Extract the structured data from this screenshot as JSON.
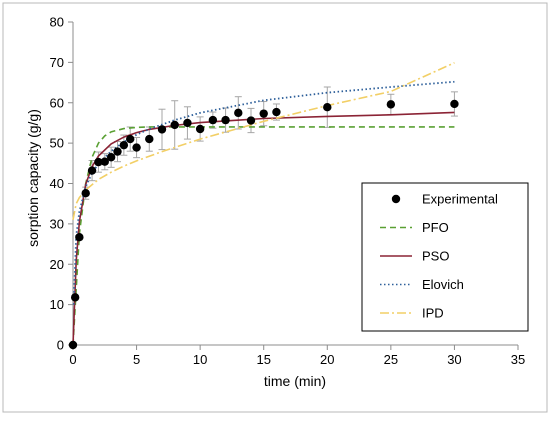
{
  "chart_data": {
    "type": "scatter",
    "xlabel": "time (min)",
    "ylabel": "sorption capacity (g/g)",
    "xlim": [
      0,
      35
    ],
    "ylim": [
      0,
      80
    ],
    "x_ticks": [
      0,
      5,
      10,
      15,
      20,
      25,
      30,
      35
    ],
    "y_ticks": [
      0,
      10,
      20,
      30,
      40,
      50,
      60,
      70,
      80
    ],
    "x_tick_labels": [
      "0",
      "5",
      "10",
      "15",
      "20",
      "25",
      "30",
      "35"
    ],
    "y_tick_labels": [
      "0",
      "10",
      "20",
      "30",
      "40",
      "50",
      "60",
      "70",
      "80"
    ],
    "grid": false,
    "legend_position": "right",
    "series": [
      {
        "name": "Experimental",
        "kind": "points",
        "color": "#000000",
        "x": [
          0,
          0.17,
          0.5,
          1,
          1.5,
          2,
          2.5,
          3,
          3.5,
          4,
          4.5,
          5,
          6,
          7,
          8,
          9,
          10,
          11,
          12,
          13,
          14,
          15,
          16,
          20,
          25,
          30
        ],
        "y": [
          0,
          11.8,
          26.7,
          37.6,
          43.2,
          45.3,
          45.4,
          46.5,
          47.9,
          49.5,
          51.0,
          48.9,
          51.0,
          53.4,
          54.5,
          55.0,
          53.5,
          55.7,
          55.7,
          57.5,
          55.6,
          57.3,
          57.7,
          58.9,
          59.6,
          59.7
        ],
        "error": [
          0,
          0,
          0,
          1.5,
          2.5,
          2.5,
          2.0,
          2.5,
          2.5,
          2.5,
          3.0,
          2.5,
          3.0,
          5.0,
          6.0,
          4.0,
          3.0,
          2.0,
          3.0,
          4.0,
          3.0,
          3.0,
          2.0,
          5.0,
          2.5,
          3.0
        ]
      },
      {
        "name": "PFO",
        "kind": "line",
        "color": "#5aa033",
        "dash": "6,4",
        "x": [
          0,
          0.5,
          1,
          1.5,
          2,
          2.5,
          3,
          4,
          5,
          6,
          8,
          10,
          15,
          20,
          25,
          30
        ],
        "y": [
          0,
          27.5,
          40.0,
          46.5,
          50.0,
          51.8,
          52.8,
          53.6,
          53.9,
          54.0,
          54.0,
          54.0,
          54.0,
          54.0,
          54.0,
          54.0
        ]
      },
      {
        "name": "PSO",
        "kind": "line",
        "color": "#8b2335",
        "dash": "",
        "x": [
          0,
          0.25,
          0.5,
          1,
          1.5,
          2,
          3,
          4,
          5,
          6,
          8,
          10,
          15,
          20,
          25,
          30
        ],
        "y": [
          0,
          20.8,
          30.5,
          39.8,
          44.2,
          46.8,
          49.8,
          51.5,
          52.6,
          53.4,
          54.4,
          55.1,
          56.1,
          56.6,
          57.0,
          57.6
        ]
      },
      {
        "name": "Elovich",
        "kind": "line",
        "color": "#2d5f9a",
        "dash": "1.5,2.5",
        "x": [
          0.05,
          0.25,
          0.5,
          1,
          1.5,
          2,
          3,
          4,
          5,
          6,
          8,
          10,
          15,
          20,
          25,
          30
        ],
        "y": [
          10.0,
          27.0,
          33.0,
          39.2,
          42.6,
          44.9,
          48.0,
          50.3,
          52.1,
          53.5,
          55.7,
          57.5,
          60.6,
          62.5,
          63.9,
          65.2
        ]
      },
      {
        "name": "IPD",
        "kind": "line",
        "color": "#f2cf66",
        "dash": "9,3,2,3",
        "x": [
          0,
          0.25,
          0.5,
          1,
          2,
          3,
          4,
          5,
          7,
          10,
          15,
          20,
          25,
          30
        ],
        "y": [
          31.0,
          35.0,
          36.5,
          38.4,
          41.0,
          42.8,
          44.3,
          45.6,
          47.9,
          51.0,
          55.4,
          59.3,
          62.8,
          69.9
        ]
      }
    ]
  }
}
